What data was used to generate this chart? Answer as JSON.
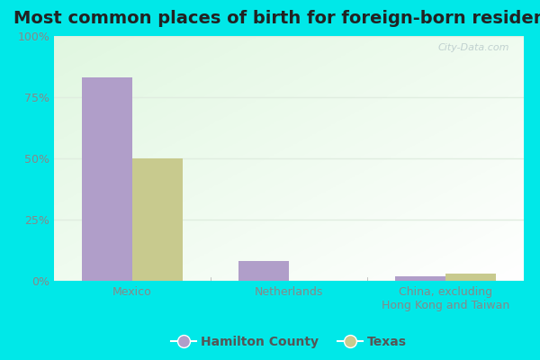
{
  "title": "Most common places of birth for foreign-born residents",
  "categories": [
    "Mexico",
    "Netherlands",
    "China, excluding\nHong Kong and Taiwan"
  ],
  "hamilton_county": [
    83,
    8,
    2
  ],
  "texas": [
    50,
    0,
    3
  ],
  "hamilton_color": "#b09ec9",
  "texas_color": "#c8ca8e",
  "bg_outer": "#00e8e8",
  "yticks": [
    0,
    25,
    50,
    75,
    100
  ],
  "ylabels": [
    "0%",
    "25%",
    "50%",
    "75%",
    "100%"
  ],
  "ylim": [
    0,
    100
  ],
  "bar_width": 0.32,
  "title_fontsize": 14,
  "tick_fontsize": 9,
  "legend_fontsize": 10,
  "watermark": "City-Data.com",
  "grid_color": "#e0ede0",
  "tick_color": "#888888",
  "legend_label_color": "#555555"
}
